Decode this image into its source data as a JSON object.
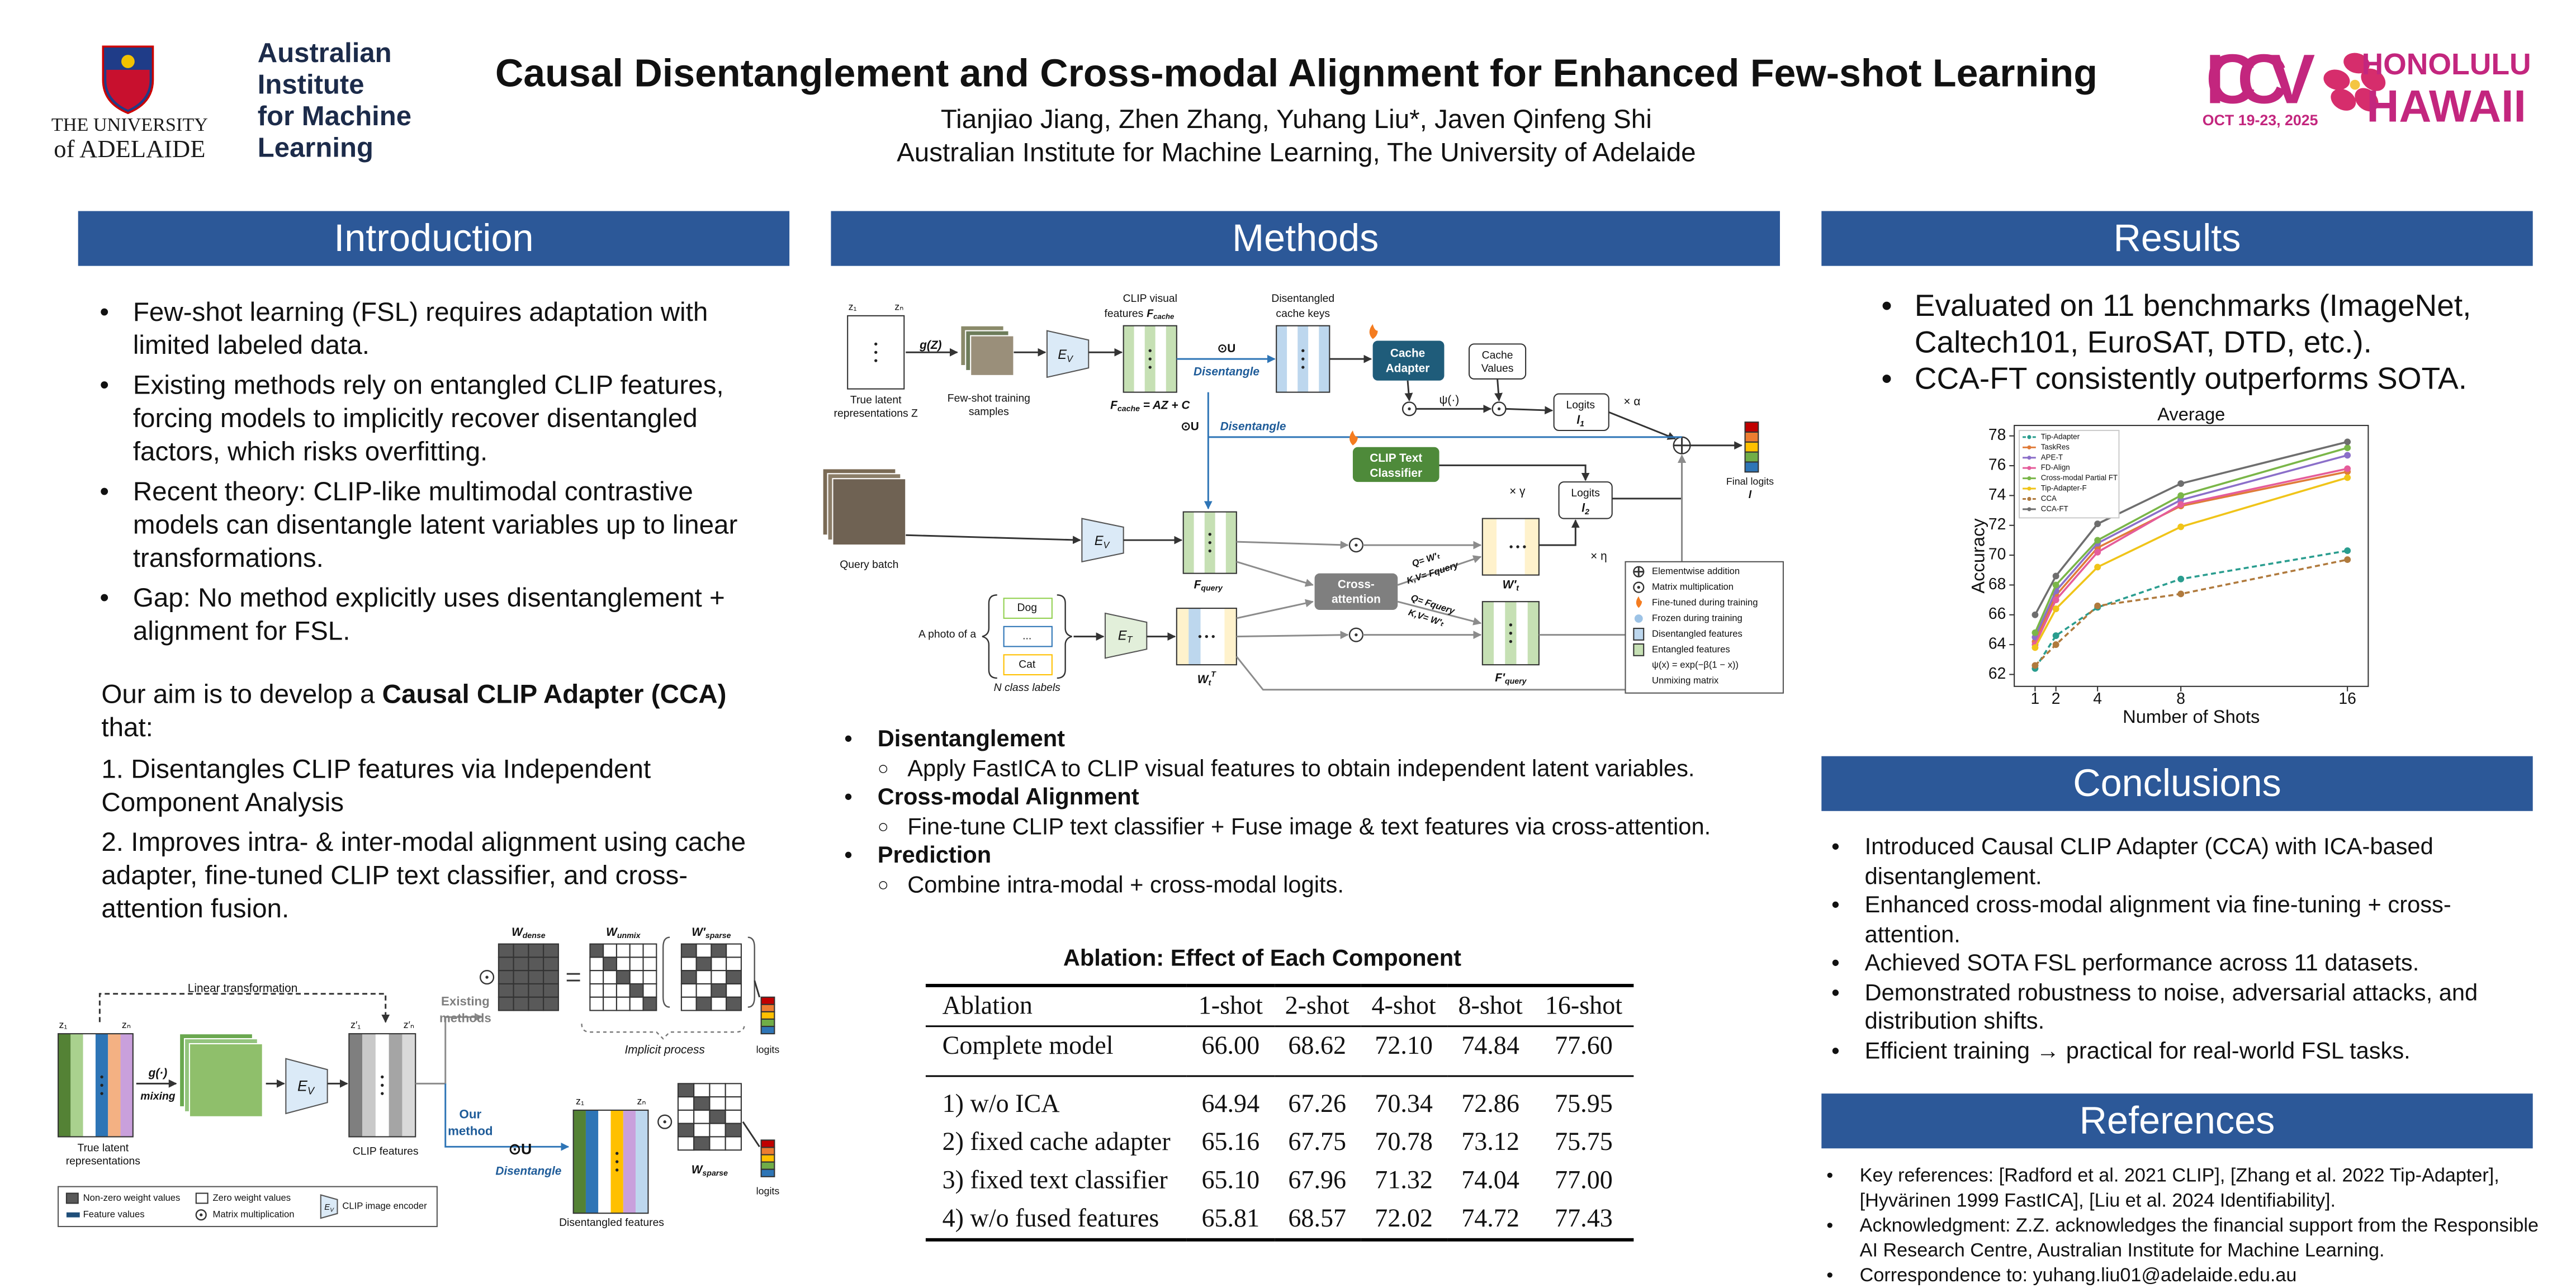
{
  "header": {
    "title": "Causal Disentanglement and Cross-modal Alignment for Enhanced Few-shot Learning",
    "authors": "Tianjiao Jiang, Zhen Zhang, Yuhang Liu*, Javen Qinfeng Shi",
    "affiliation": "Australian Institute for Machine Learning, The University of Adelaide",
    "logos": {
      "adelaide": [
        "THE UNIVERSITY",
        "of ADELAIDE"
      ],
      "aiml": [
        "Australian",
        "Institute",
        "for Machine",
        "Learning"
      ],
      "iccv": "ICCV",
      "iccv_date": "OCT 19-23, 2025",
      "location": [
        "HONOLULU",
        "HAWAII"
      ]
    }
  },
  "introduction": {
    "heading": "Introduction",
    "bullets": [
      "Few-shot learning (FSL) requires adaptation with limited labeled data.",
      "Existing methods rely on entangled CLIP features, forcing models to implicitly recover disentangled factors, which risks overfitting.",
      "Recent theory: CLIP-like multimodal contrastive models can disentangle latent variables up to linear transformations.",
      "Gap: No method explicitly uses disentanglement + alignment for FSL."
    ],
    "aim": {
      "before": "Our aim is to develop a ",
      "bold": "Causal CLIP Adapter (CCA)",
      "after": " that:"
    },
    "steps": [
      "1. Disentangles CLIP features via Independent Component Analysis",
      "2. Improves intra- & inter-modal alignment using cache adapter, fine-tuned CLIP text classifier, and cross-attention fusion."
    ],
    "figure": {
      "linear": "Linear transformation",
      "z": [
        "z₁",
        "zₙ"
      ],
      "latent": [
        "True latent",
        "representations"
      ],
      "mixing": [
        "g(·)",
        "mixing"
      ],
      "encoder": {
        "main": "E",
        "sub": "V"
      },
      "zp": [
        "z′₁",
        "z′ₙ"
      ],
      "clip_features": "CLIP features",
      "existing": [
        "Existing",
        "methods"
      ],
      "ours": [
        "Our",
        "method"
      ],
      "op": "⊙U",
      "disentangle": "Disentangle",
      "w_dense": {
        "main": "W",
        "sub": "dense"
      },
      "w_unmix": {
        "main": "W",
        "sub": "unmix"
      },
      "w_sparse_prime": {
        "main": "W′",
        "sub": "sparse"
      },
      "implicit": "Implicit process",
      "logits": [
        "logits",
        "logits"
      ],
      "z_out": [
        "z₁",
        "zₙ"
      ],
      "disentangled_features": "Disentangled features",
      "w_sparse": {
        "main": "W",
        "sub": "sparse"
      },
      "legend": [
        "Non-zero weight values",
        "Zero weight values",
        "Feature values",
        "Matrix multiplication",
        "CLIP image encoder"
      ],
      "legend_encoder": {
        "main": "E",
        "sub": "V"
      }
    }
  },
  "methods": {
    "heading": "Methods",
    "figure": {
      "z": [
        "z₁",
        "zₙ"
      ],
      "latent": [
        "True latent",
        "representations Z"
      ],
      "gz": "g(Z)",
      "samples": [
        "Few-shot training",
        "samples"
      ],
      "encoder_v": {
        "main": "E",
        "sub": "V"
      },
      "clip_visual": [
        "CLIP visual",
        "features"
      ],
      "f_cache": {
        "main": "F",
        "sub": "cache"
      },
      "equation": {
        "main": "F",
        "sub": "cache",
        "rest": " = AZ + C"
      },
      "branches": [
        {
          "op": "⊙U",
          "label": "Disentangle"
        },
        {
          "op": "⊙U",
          "label": "Disentangle"
        }
      ],
      "keys": [
        "Disentangled",
        "cache keys"
      ],
      "cache_adapter": [
        "Cache",
        "Adapter"
      ],
      "cache_values": [
        "Cache",
        "Values"
      ],
      "psi": "ψ(·)",
      "logits1": {
        "title": "Logits",
        "symbol": {
          "main": "l",
          "sub": "1"
        }
      },
      "alpha": "× α",
      "final": [
        "Final logits",
        "l"
      ],
      "text_classifier": [
        "CLIP Text",
        "Classifier"
      ],
      "gamma": "× γ",
      "logits2": {
        "title": "Logits",
        "symbol": {
          "main": "l",
          "sub": "2"
        }
      },
      "eta": "× η",
      "query_batch": "Query batch",
      "encoder_q": {
        "main": "E",
        "sub": "V"
      },
      "f_query": {
        "main": "F",
        "sub": "query"
      },
      "cross_attention": [
        "Cross-",
        "attention"
      ],
      "w_t_prime": {
        "main": "W′",
        "sub": "t"
      },
      "f_query_prime": {
        "main": "F′",
        "sub": "query"
      },
      "qkv": [
        "Q= W′ₜ",
        "K,V= Fquery",
        "Q= Fquery",
        "K,V= W′ₜ"
      ],
      "prompt": "A photo of a",
      "classes": [
        "Dog",
        "...",
        "Cat"
      ],
      "n_labels": "N class labels",
      "encoder_t": {
        "main": "E",
        "sub": "T"
      },
      "w_t": {
        "main": "W",
        "sub": "t",
        "sup": "T"
      },
      "legend": [
        "Elementwise addition",
        "Matrix multiplication",
        "Fine-tuned during training",
        "Frozen during training",
        "Disentangled features",
        "Entangled features",
        "ψ(x) = exp(−β(1 − x))",
        "Unmixing matrix"
      ]
    },
    "points": [
      {
        "title": "Disentanglement",
        "detail": "Apply FastICA to CLIP visual features to obtain independent latent variables."
      },
      {
        "title": "Cross-modal Alignment",
        "detail": "Fine-tune CLIP text classifier + Fuse image & text features via cross-attention."
      },
      {
        "title": "Prediction",
        "detail": "Combine intra-modal + cross-modal logits."
      }
    ]
  },
  "ablation": {
    "title": "Ablation: Effect of Each Component",
    "columns": [
      "Ablation",
      "1-shot",
      "2-shot",
      "4-shot",
      "8-shot",
      "16-shot"
    ],
    "rows": [
      [
        "Complete model",
        "66.00",
        "68.62",
        "72.10",
        "74.84",
        "77.60"
      ],
      [
        "1) w/o ICA",
        "64.94",
        "67.26",
        "70.34",
        "72.86",
        "75.95"
      ],
      [
        "2) fixed cache adapter",
        "65.16",
        "67.75",
        "70.78",
        "73.12",
        "75.75"
      ],
      [
        "3) fixed text classifier",
        "65.10",
        "67.96",
        "71.32",
        "74.04",
        "77.00"
      ],
      [
        "4) w/o fused features",
        "65.81",
        "68.57",
        "72.02",
        "74.72",
        "77.43"
      ]
    ]
  },
  "results": {
    "heading": "Results",
    "bullets": [
      "Evaluated on 11 benchmarks (ImageNet, Caltech101, EuroSAT, DTD, etc.).",
      "CCA-FT consistently outperforms SOTA."
    ]
  },
  "chart_data": {
    "type": "line",
    "title": "Average",
    "x_label": "Number of Shots",
    "y_label": "Accuracy",
    "x": [
      1,
      2,
      4,
      8,
      16
    ],
    "xlim": [
      0,
      17
    ],
    "xticks": [
      1,
      2,
      4,
      8,
      16
    ],
    "ylim": [
      61.2,
      78.7
    ],
    "yticks": [
      62,
      64,
      66,
      68,
      70,
      72,
      74,
      76,
      78
    ],
    "legend": "upper left",
    "series": [
      {
        "name": "Tip-Adapter",
        "color": "#2a9d8f",
        "linestyle": "dashed",
        "values": [
          62.4,
          64.6,
          66.5,
          68.4,
          70.3
        ]
      },
      {
        "name": "TaskRes",
        "color": "#e07b39",
        "linestyle": "solid",
        "values": [
          64.2,
          67.3,
          70.5,
          73.3,
          75.6
        ]
      },
      {
        "name": "APE-T",
        "color": "#8b6fc9",
        "linestyle": "solid",
        "values": [
          64.5,
          67.6,
          70.8,
          73.7,
          76.7
        ]
      },
      {
        "name": "FD-Align",
        "color": "#e55c9a",
        "linestyle": "solid",
        "values": [
          64.0,
          67.0,
          70.2,
          73.4,
          75.8
        ]
      },
      {
        "name": "Cross-modal Partial FT",
        "color": "#7ab648",
        "linestyle": "solid",
        "values": [
          64.8,
          68.0,
          71.0,
          74.0,
          77.2
        ]
      },
      {
        "name": "Tip-Adapter-F",
        "color": "#f0c419",
        "linestyle": "solid",
        "values": [
          63.8,
          66.4,
          69.2,
          71.9,
          75.2
        ]
      },
      {
        "name": "CCA",
        "color": "#b07a3d",
        "linestyle": "dashed",
        "values": [
          62.6,
          64.0,
          66.6,
          67.4,
          69.7
        ]
      },
      {
        "name": "CCA-FT",
        "color": "#6e6e6e",
        "linestyle": "solid",
        "values": [
          66.0,
          68.6,
          72.1,
          74.8,
          77.6
        ]
      }
    ]
  },
  "conclusions": {
    "heading": "Conclusions",
    "bullets": [
      "Introduced Causal CLIP Adapter (CCA) with ICA-based disentanglement.",
      "Enhanced cross-modal alignment via fine-tuning + cross-attention.",
      "Achieved SOTA FSL performance across 11 datasets.",
      "Demonstrated robustness to noise, adversarial attacks, and distribution shifts.",
      "Efficient training → practical for real-world FSL tasks."
    ]
  },
  "references": {
    "heading": "References",
    "bullets": [
      "Key references: [Radford et al. 2021 CLIP], [Zhang et al. 2022 Tip-Adapter], [Hyvärinen 1999 FastICA], [Liu et al. 2024 Identifiability].",
      "Acknowledgment: Z.Z. acknowledges the financial support from the Responsible AI Research Centre, Australian Institute for Machine Learning.",
      "Correspondence to: yuhang.liu01@adelaide.edu.au"
    ]
  }
}
